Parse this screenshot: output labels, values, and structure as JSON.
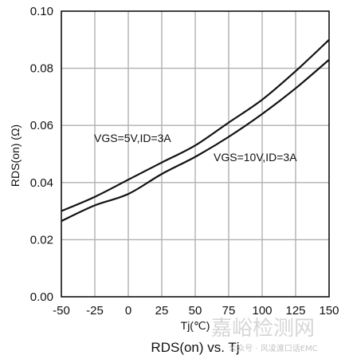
{
  "chart_data": {
    "type": "line",
    "title": "RDS(on) vs. Tj",
    "xlabel": "Tj(℃)",
    "ylabel": "RDS(on) (Ω)",
    "xlim": [
      -50,
      150
    ],
    "ylim": [
      0.0,
      0.1
    ],
    "grid": true,
    "x_ticks": [
      "-50",
      "-25",
      "0",
      "25",
      "50",
      "75",
      "100",
      "125",
      "150"
    ],
    "y_ticks": [
      "0.00",
      "0.02",
      "0.04",
      "0.06",
      "0.08",
      "0.10"
    ],
    "series": [
      {
        "name": "VGS=5V,ID=3A",
        "x": [
          -50,
          -25,
          0,
          25,
          50,
          75,
          100,
          125,
          150
        ],
        "y": [
          0.03,
          0.035,
          0.041,
          0.047,
          0.053,
          0.061,
          0.069,
          0.079,
          0.09
        ]
      },
      {
        "name": "VGS=10V,ID=3A",
        "x": [
          -50,
          -25,
          0,
          25,
          50,
          75,
          100,
          125,
          150
        ],
        "y": [
          0.0265,
          0.032,
          0.036,
          0.043,
          0.049,
          0.056,
          0.064,
          0.073,
          0.083
        ]
      }
    ],
    "annotations": [
      "VGS=5V,ID=3A",
      "VGS=10V,ID=3A"
    ]
  },
  "watermark": {
    "logo_text": "嘉峪检测网",
    "caption": "公众号 · 风凌渡口话EMC"
  },
  "colors": {
    "line": "#111111",
    "grid": "#b0b0b0",
    "frame": "#111111"
  }
}
